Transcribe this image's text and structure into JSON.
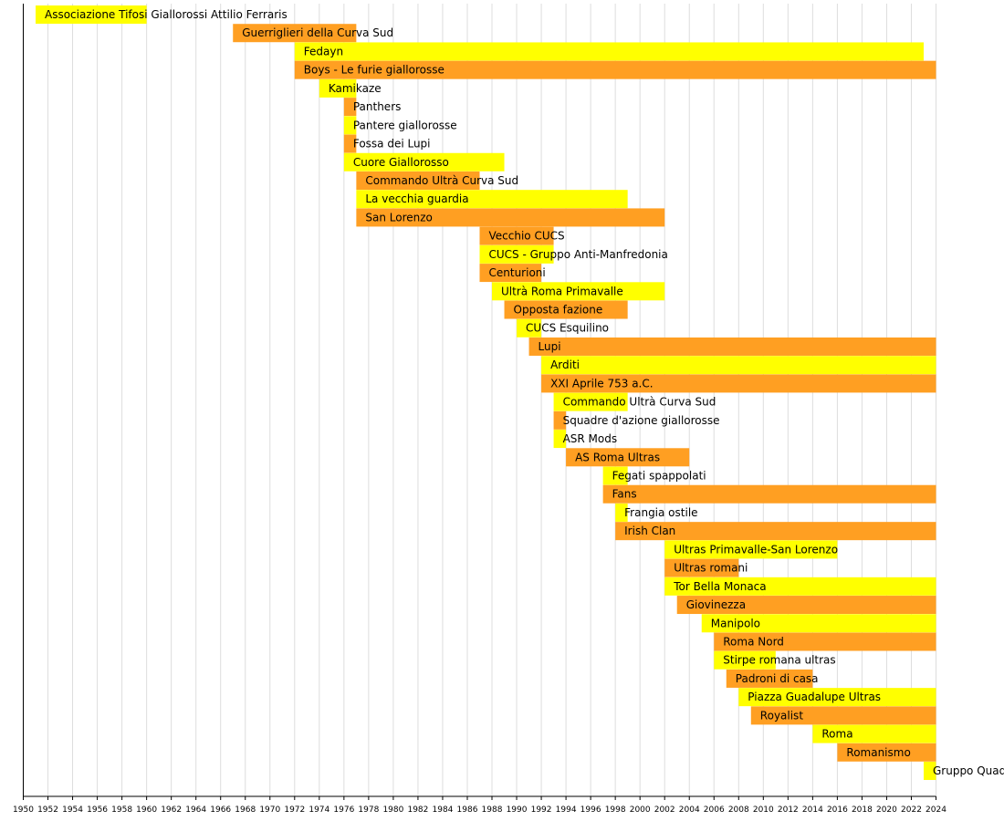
{
  "chart_data": {
    "type": "timeline",
    "title": "",
    "xlabel": "",
    "ylabel": "",
    "xlim": [
      1950,
      2024
    ],
    "grid": true,
    "tick_years": [
      1950,
      1952,
      1954,
      1956,
      1958,
      1960,
      1962,
      1964,
      1966,
      1968,
      1970,
      1972,
      1974,
      1976,
      1978,
      1980,
      1982,
      1984,
      1986,
      1988,
      1990,
      1992,
      1994,
      1996,
      1998,
      2000,
      2002,
      2004,
      2006,
      2008,
      2010,
      2012,
      2014,
      2016,
      2018,
      2020,
      2022,
      2024
    ],
    "colors": {
      "light": "#ffff00",
      "dark": "#ff9f22",
      "grid": "#dddddd",
      "axis": "#000000"
    },
    "groups": [
      {
        "name": "Associazione Tifosi Giallorossi Attilio Ferraris",
        "start": 1951,
        "end": 1960,
        "color": "light"
      },
      {
        "name": "Guerriglieri della Curva Sud",
        "start": 1967,
        "end": 1977,
        "color": "dark"
      },
      {
        "name": "Fedayn",
        "start": 1972,
        "end": 2023,
        "color": "light"
      },
      {
        "name": "Boys - Le furie giallorosse",
        "start": 1972,
        "end": 2024,
        "color": "dark"
      },
      {
        "name": "Kamikaze",
        "start": 1974,
        "end": 1977,
        "color": "light"
      },
      {
        "name": "Panthers",
        "start": 1976,
        "end": 1977,
        "color": "dark"
      },
      {
        "name": "Pantere giallorosse",
        "start": 1976,
        "end": 1977,
        "color": "light"
      },
      {
        "name": "Fossa dei Lupi",
        "start": 1976,
        "end": 1977,
        "color": "dark"
      },
      {
        "name": "Cuore Giallorosso",
        "start": 1976,
        "end": 1989,
        "color": "light"
      },
      {
        "name": "Commando Ultrà Curva Sud",
        "start": 1977,
        "end": 1987,
        "color": "dark"
      },
      {
        "name": "La vecchia guardia",
        "start": 1977,
        "end": 1999,
        "color": "light"
      },
      {
        "name": "San Lorenzo",
        "start": 1977,
        "end": 2002,
        "color": "dark"
      },
      {
        "name": "Vecchio CUCS",
        "start": 1987,
        "end": 1993,
        "color": "dark"
      },
      {
        "name": "CUCS - Gruppo Anti-Manfredonia",
        "start": 1987,
        "end": 1993,
        "color": "light"
      },
      {
        "name": "Centurioni",
        "start": 1987,
        "end": 1992,
        "color": "dark"
      },
      {
        "name": "Ultrà Roma Primavalle",
        "start": 1988,
        "end": 2002,
        "color": "light"
      },
      {
        "name": "Opposta fazione",
        "start": 1989,
        "end": 1999,
        "color": "dark"
      },
      {
        "name": "CUCS Esquilino",
        "start": 1990,
        "end": 1992,
        "color": "light"
      },
      {
        "name": "Lupi",
        "start": 1991,
        "end": 2024,
        "color": "dark"
      },
      {
        "name": "Arditi",
        "start": 1992,
        "end": 2024,
        "color": "light"
      },
      {
        "name": "XXI Aprile 753 a.C.",
        "start": 1992,
        "end": 2024,
        "color": "dark"
      },
      {
        "name": "Commando Ultrà Curva Sud",
        "start": 1993,
        "end": 1999,
        "color": "light"
      },
      {
        "name": "Squadre d'azione giallorosse",
        "start": 1993,
        "end": 1994,
        "color": "dark"
      },
      {
        "name": "ASR Mods",
        "start": 1993,
        "end": 1994,
        "color": "light"
      },
      {
        "name": "AS Roma Ultras",
        "start": 1994,
        "end": 2004,
        "color": "dark"
      },
      {
        "name": "Fegati spappolati",
        "start": 1997,
        "end": 1999,
        "color": "light"
      },
      {
        "name": "Fans",
        "start": 1997,
        "end": 2024,
        "color": "dark"
      },
      {
        "name": "Frangia ostile",
        "start": 1998,
        "end": 1999,
        "color": "light"
      },
      {
        "name": "Irish Clan",
        "start": 1998,
        "end": 2024,
        "color": "dark"
      },
      {
        "name": "Ultras Primavalle-San Lorenzo",
        "start": 2002,
        "end": 2016,
        "color": "light"
      },
      {
        "name": "Ultras romani",
        "start": 2002,
        "end": 2008,
        "color": "dark"
      },
      {
        "name": "Tor Bella Monaca",
        "start": 2002,
        "end": 2024,
        "color": "light"
      },
      {
        "name": "Giovinezza",
        "start": 2003,
        "end": 2024,
        "color": "dark"
      },
      {
        "name": "Manipolo",
        "start": 2005,
        "end": 2024,
        "color": "light"
      },
      {
        "name": "Roma Nord",
        "start": 2006,
        "end": 2024,
        "color": "dark"
      },
      {
        "name": "Stirpe romana ultras",
        "start": 2006,
        "end": 2011,
        "color": "light"
      },
      {
        "name": "Padroni di casa",
        "start": 2007,
        "end": 2014,
        "color": "dark"
      },
      {
        "name": "Piazza Guadalupe Ultras",
        "start": 2008,
        "end": 2024,
        "color": "light"
      },
      {
        "name": "Royalist",
        "start": 2009,
        "end": 2024,
        "color": "dark"
      },
      {
        "name": "Roma",
        "start": 2014,
        "end": 2024,
        "color": "light"
      },
      {
        "name": "Romanismo",
        "start": 2016,
        "end": 2024,
        "color": "dark"
      },
      {
        "name": "Gruppo Quadraro",
        "start": 2023,
        "end": 2024,
        "color": "light"
      }
    ]
  }
}
